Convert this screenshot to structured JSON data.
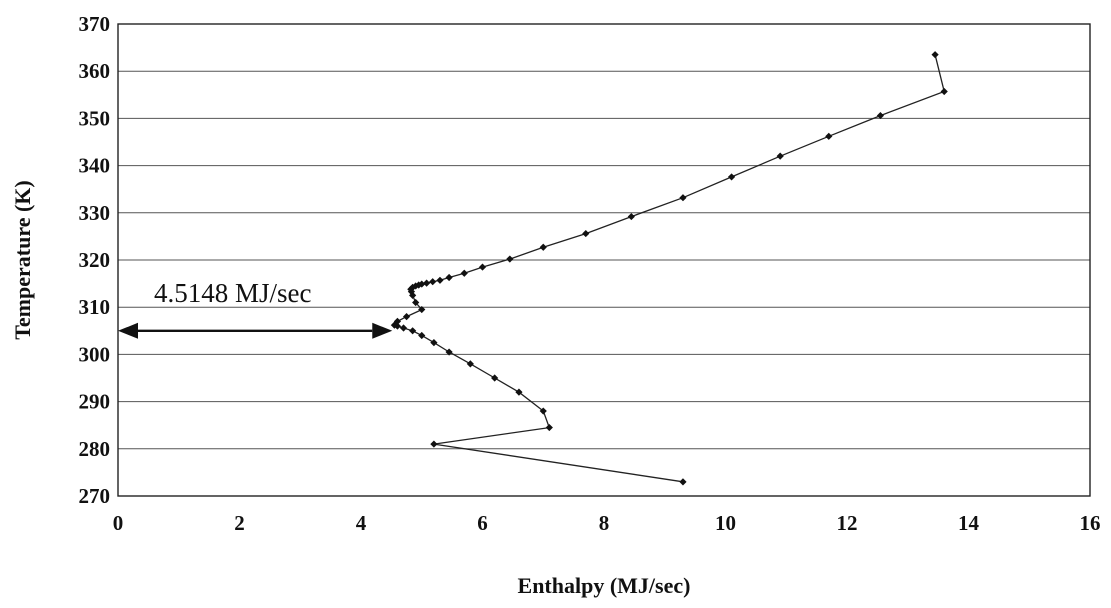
{
  "chart_data": {
    "type": "line",
    "xlabel": "Enthalpy (MJ/sec)",
    "ylabel": "Temperature (K)",
    "xlim": [
      0,
      16
    ],
    "ylim": [
      270,
      370
    ],
    "xticks": [
      "0",
      "2",
      "4",
      "6",
      "8",
      "10",
      "12",
      "14",
      "16"
    ],
    "yticks": [
      "270",
      "280",
      "290",
      "300",
      "310",
      "320",
      "330",
      "340",
      "350",
      "360",
      "370"
    ],
    "grid": "horizontal",
    "series": [
      {
        "x": [
          9.3,
          5.2,
          7.1,
          7.0,
          6.6,
          6.2,
          5.8,
          5.45,
          5.2,
          5.0,
          4.85,
          4.7,
          4.6,
          4.55,
          4.6,
          4.75,
          5.0,
          4.9,
          4.85,
          4.83,
          4.82,
          4.85,
          4.9,
          4.95,
          5.0,
          5.08,
          5.18,
          5.3,
          5.45,
          5.7,
          6.0,
          6.45,
          7.0,
          7.7,
          8.45,
          9.3,
          10.1,
          10.9,
          11.7,
          12.55,
          13.6,
          13.45
        ],
        "y": [
          273,
          281,
          284.5,
          288,
          292,
          295,
          298,
          300.5,
          302.5,
          304,
          305,
          305.6,
          306,
          306.2,
          307,
          308,
          309.5,
          311,
          312.5,
          313.3,
          313.8,
          314.2,
          314.5,
          314.7,
          314.9,
          315.1,
          315.4,
          315.7,
          316.3,
          317.2,
          318.5,
          320.2,
          322.7,
          325.6,
          329.2,
          333.2,
          337.6,
          342,
          346.2,
          350.6,
          355.7,
          363.5
        ]
      }
    ],
    "annotation": {
      "text": "4.5148 MJ/sec",
      "x_from": 0,
      "x_to": 4.5148,
      "y": 305
    }
  }
}
